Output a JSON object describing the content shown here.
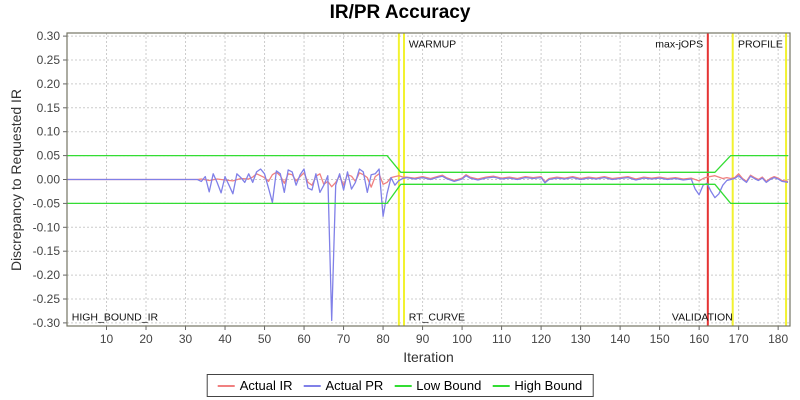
{
  "chart_data": {
    "type": "line",
    "title": "IR/PR Accuracy",
    "xlabel": "Iteration",
    "ylabel": "Discrepancy to Requested IR",
    "xlim": [
      0,
      183
    ],
    "ylim": [
      -0.3065,
      0.3065
    ],
    "x_ticks": [
      10,
      20,
      30,
      40,
      50,
      60,
      70,
      80,
      90,
      100,
      110,
      120,
      130,
      140,
      150,
      160,
      170,
      180
    ],
    "y_ticks": [
      0.3,
      0.25,
      0.2,
      0.15,
      0.1,
      0.05,
      0.0,
      -0.05,
      -0.1,
      -0.15,
      -0.2,
      -0.25,
      -0.3
    ],
    "grid": true,
    "legend_position": "bottom",
    "colors": {
      "actual_ir": "#f08080",
      "actual_pr": "#8080e8",
      "bound": "#33dd33",
      "phase_yellow": "#f2f230",
      "phase_red": "#e53434",
      "gridline": "#cccccc",
      "plot_border": "#757564",
      "tick_text": "#444444",
      "annotation_text": "#111111"
    },
    "series": [
      {
        "name": "Actual IR",
        "color": "#f08080",
        "points": [
          [
            0,
            0
          ],
          [
            33,
            0
          ],
          [
            34,
            0.001
          ],
          [
            36,
            -0.002
          ],
          [
            38,
            0.001
          ],
          [
            40,
            -0.001
          ],
          [
            42,
            -0.003
          ],
          [
            44,
            0.002
          ],
          [
            46,
            0.001
          ],
          [
            47,
            0.005
          ],
          [
            48,
            0.012
          ],
          [
            49,
            0.008
          ],
          [
            50,
            0.004
          ],
          [
            51,
            -0.004
          ],
          [
            52,
            0.01
          ],
          [
            53,
            0.015
          ],
          [
            54,
            0.008
          ],
          [
            55,
            -0.008
          ],
          [
            56,
            0.012
          ],
          [
            57,
            0.01
          ],
          [
            58,
            -0.003
          ],
          [
            59,
            0.006
          ],
          [
            60,
            0.014
          ],
          [
            61,
            -0.006
          ],
          [
            62,
            -0.012
          ],
          [
            63,
            0.007
          ],
          [
            64,
            0.012
          ],
          [
            65,
            -0.01
          ],
          [
            66,
            -0.004
          ],
          [
            67,
            -0.015
          ],
          [
            68,
            -0.006
          ],
          [
            69,
            0.008
          ],
          [
            70,
            -0.012
          ],
          [
            71,
            0.01
          ],
          [
            72,
            0.007
          ],
          [
            73,
            -0.004
          ],
          [
            74,
            0.014
          ],
          [
            75,
            0.01
          ],
          [
            76,
            0.004
          ],
          [
            77,
            -0.016
          ],
          [
            78,
            0.006
          ],
          [
            79,
            0.012
          ],
          [
            80,
            -0.01
          ],
          [
            81,
            -0.006
          ],
          [
            82,
            0.004
          ],
          [
            83,
            0.006
          ],
          [
            84,
            0.008
          ],
          [
            85,
            0.005
          ],
          [
            86,
            0.005
          ],
          [
            88,
            0.003
          ],
          [
            90,
            0.006
          ],
          [
            92,
            0.002
          ],
          [
            94,
            0.007
          ],
          [
            95,
            0.009
          ],
          [
            96,
            0.004
          ],
          [
            98,
            -0.002
          ],
          [
            100,
            0.003
          ],
          [
            101,
            0.01
          ],
          [
            102,
            0.005
          ],
          [
            104,
            0.001
          ],
          [
            106,
            0.005
          ],
          [
            108,
            0.007
          ],
          [
            110,
            0.003
          ],
          [
            112,
            0.005
          ],
          [
            114,
            0.002
          ],
          [
            116,
            0.006
          ],
          [
            118,
            0.004
          ],
          [
            120,
            0.006
          ],
          [
            121,
            -0.005
          ],
          [
            122,
            0.002
          ],
          [
            124,
            0.005
          ],
          [
            126,
            0.003
          ],
          [
            128,
            0.006
          ],
          [
            130,
            0.002
          ],
          [
            132,
            0.005
          ],
          [
            134,
            0.003
          ],
          [
            136,
            0.006
          ],
          [
            138,
            0.002
          ],
          [
            140,
            0.004
          ],
          [
            142,
            0.006
          ],
          [
            144,
            0.001
          ],
          [
            146,
            0.005
          ],
          [
            148,
            0.003
          ],
          [
            150,
            0.005
          ],
          [
            152,
            0.002
          ],
          [
            154,
            0.004
          ],
          [
            156,
            0.001
          ],
          [
            158,
            0.003
          ],
          [
            159,
            0
          ],
          [
            160,
            -0.003
          ],
          [
            161,
            0.002
          ],
          [
            162,
            0.005
          ],
          [
            164,
            0.008
          ],
          [
            166,
            0.002
          ],
          [
            167,
            0.004
          ],
          [
            168,
            0.002
          ],
          [
            169,
            0.004
          ],
          [
            170,
            0.012
          ],
          [
            171,
            0.002
          ],
          [
            172,
            -0.004
          ],
          [
            173,
            0.009
          ],
          [
            174,
            0.004
          ],
          [
            175,
            0
          ],
          [
            176,
            0.005
          ],
          [
            177,
            -0.004
          ],
          [
            178,
            0.002
          ],
          [
            179,
            0.006
          ],
          [
            180,
            0.003
          ],
          [
            181,
            -0.002
          ],
          [
            182.5,
            -0.004
          ]
        ]
      },
      {
        "name": "Actual PR",
        "color": "#8080e8",
        "points": [
          [
            0,
            0
          ],
          [
            33,
            0
          ],
          [
            34,
            -0.004
          ],
          [
            35,
            0.006
          ],
          [
            36,
            -0.026
          ],
          [
            37,
            0.012
          ],
          [
            38,
            -0.006
          ],
          [
            39,
            -0.028
          ],
          [
            40,
            0.006
          ],
          [
            41,
            -0.012
          ],
          [
            42,
            -0.03
          ],
          [
            43,
            0.012
          ],
          [
            44,
            0.004
          ],
          [
            45,
            -0.006
          ],
          [
            46,
            0.012
          ],
          [
            47,
            -0.006
          ],
          [
            48,
            0.016
          ],
          [
            49,
            0.022
          ],
          [
            50,
            0.012
          ],
          [
            51,
            -0.018
          ],
          [
            52,
            -0.048
          ],
          [
            53,
            0.018
          ],
          [
            54,
            0.012
          ],
          [
            55,
            -0.027
          ],
          [
            56,
            0.02
          ],
          [
            57,
            0.016
          ],
          [
            58,
            -0.012
          ],
          [
            59,
            0.01
          ],
          [
            60,
            0.022
          ],
          [
            61,
            -0.018
          ],
          [
            62,
            -0.022
          ],
          [
            63,
            0.012
          ],
          [
            64,
            -0.027
          ],
          [
            65,
            -0.012
          ],
          [
            66,
            0.008
          ],
          [
            67,
            -0.295
          ],
          [
            68,
            -0.012
          ],
          [
            69,
            0.012
          ],
          [
            70,
            -0.022
          ],
          [
            71,
            0.016
          ],
          [
            72,
            -0.02
          ],
          [
            73,
            -0.006
          ],
          [
            74,
            0.022
          ],
          [
            75,
            0.016
          ],
          [
            76,
            -0.027
          ],
          [
            77,
            0.01
          ],
          [
            78,
            0.012
          ],
          [
            79,
            0.022
          ],
          [
            80,
            -0.077
          ],
          [
            81,
            -0.03
          ],
          [
            82,
            0.004
          ],
          [
            83,
            -0.012
          ],
          [
            84,
            -0.002
          ],
          [
            85,
            0.002
          ],
          [
            86,
            0.004
          ],
          [
            88,
            0.001
          ],
          [
            90,
            0.004
          ],
          [
            92,
            0
          ],
          [
            94,
            0.005
          ],
          [
            95,
            0.007
          ],
          [
            96,
            0.002
          ],
          [
            98,
            -0.004
          ],
          [
            100,
            0.001
          ],
          [
            101,
            0.008
          ],
          [
            102,
            0.003
          ],
          [
            104,
            -0.001
          ],
          [
            106,
            0.003
          ],
          [
            108,
            0.005
          ],
          [
            110,
            0.001
          ],
          [
            112,
            0.003
          ],
          [
            114,
            0
          ],
          [
            116,
            0.004
          ],
          [
            118,
            0.002
          ],
          [
            120,
            0.004
          ],
          [
            121,
            -0.007
          ],
          [
            122,
            0
          ],
          [
            124,
            0.003
          ],
          [
            126,
            0.001
          ],
          [
            128,
            0.004
          ],
          [
            130,
            0
          ],
          [
            132,
            0.003
          ],
          [
            134,
            0.001
          ],
          [
            136,
            0.004
          ],
          [
            138,
            0
          ],
          [
            140,
            0.002
          ],
          [
            142,
            0.004
          ],
          [
            144,
            -0.001
          ],
          [
            146,
            0.003
          ],
          [
            148,
            0.001
          ],
          [
            150,
            0.003
          ],
          [
            152,
            0
          ],
          [
            154,
            0.002
          ],
          [
            156,
            -0.001
          ],
          [
            158,
            0.001
          ],
          [
            159,
            -0.02
          ],
          [
            160,
            -0.032
          ],
          [
            161,
            -0.012
          ],
          [
            162,
            -0.008
          ],
          [
            163,
            -0.025
          ],
          [
            164,
            -0.038
          ],
          [
            165,
            -0.03
          ],
          [
            166,
            -0.012
          ],
          [
            167,
            -0.002
          ],
          [
            168,
            0
          ],
          [
            169,
            0.002
          ],
          [
            170,
            0.008
          ],
          [
            171,
            0
          ],
          [
            172,
            -0.006
          ],
          [
            173,
            0.007
          ],
          [
            174,
            0.002
          ],
          [
            175,
            -0.002
          ],
          [
            176,
            0.003
          ],
          [
            177,
            -0.006
          ],
          [
            178,
            0
          ],
          [
            179,
            0.004
          ],
          [
            180,
            0.001
          ],
          [
            181,
            -0.004
          ],
          [
            182.5,
            -0.006
          ]
        ]
      },
      {
        "name": "Low Bound",
        "color": "#33dd33",
        "points": [
          [
            0,
            -0.05
          ],
          [
            81,
            -0.05
          ],
          [
            84.5,
            -0.01
          ],
          [
            164,
            -0.01
          ],
          [
            168,
            -0.05
          ],
          [
            182.5,
            -0.05
          ]
        ]
      },
      {
        "name": "High Bound",
        "color": "#33dd33",
        "points": [
          [
            0,
            0.05
          ],
          [
            81,
            0.05
          ],
          [
            84.5,
            0.015
          ],
          [
            164,
            0.015
          ],
          [
            168,
            0.05
          ],
          [
            182.5,
            0.05
          ]
        ]
      }
    ],
    "markers": [
      {
        "name": "warmup-line-1",
        "x": 84,
        "color": "#f2f230",
        "width": 2
      },
      {
        "name": "warmup-line-2",
        "x": 85.3,
        "color": "#f2f230",
        "width": 2
      },
      {
        "name": "max-jops-line",
        "x": 162.2,
        "color": "#e53434",
        "width": 2
      },
      {
        "name": "validation-line",
        "x": 168.5,
        "color": "#f2f230",
        "width": 2
      },
      {
        "name": "profile-line",
        "x": 182,
        "color": "#f2f230",
        "width": 2
      }
    ],
    "annotations": [
      {
        "text": "HIGH_BOUND_IR",
        "x": 1.2,
        "y": -0.295,
        "anchor": "start"
      },
      {
        "text": "WARMUP",
        "x": 86.5,
        "y": 0.276,
        "anchor": "start"
      },
      {
        "text": "RT_CURVE",
        "x": 86.5,
        "y": -0.295,
        "anchor": "start"
      },
      {
        "text": "max-jOPS",
        "x": 161,
        "y": 0.276,
        "anchor": "end"
      },
      {
        "text": "VALIDATION",
        "x": 160.8,
        "y": -0.295,
        "anchor": "middle"
      },
      {
        "text": "PROFILE",
        "x": 181.2,
        "y": 0.276,
        "anchor": "end"
      }
    ]
  }
}
